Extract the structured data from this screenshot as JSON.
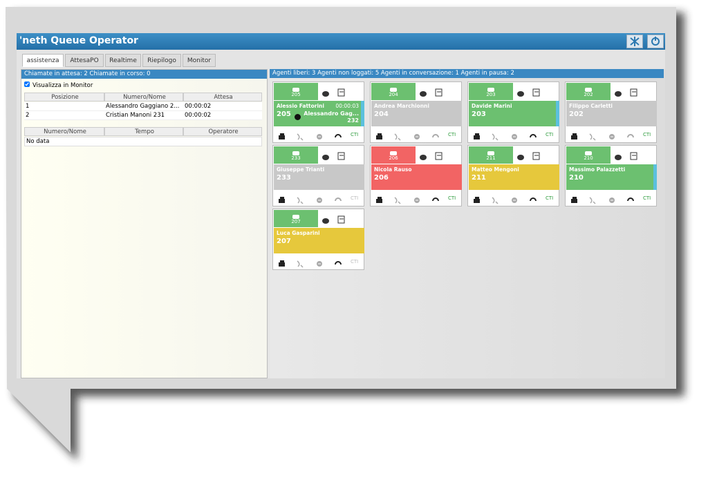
{
  "window": {
    "title": "'neth Queue Operator"
  },
  "tabs": [
    "assistenza",
    "AttesaPO",
    "Realtime",
    "Riepilogo",
    "Monitor"
  ],
  "queue_panel": {
    "status": "Chiamate in attesa: 2 Chiamate in corso: 0",
    "checkbox_label": "Visualizza in Monitor",
    "waiting_table": {
      "headers": [
        "Posizione",
        "Numero/Nome",
        "Attesa"
      ],
      "rows": [
        [
          "1",
          "Alessandro Gaggiano 2...",
          "00:00:02"
        ],
        [
          "2",
          "Cristian Manoni 231",
          "00:00:02"
        ]
      ]
    },
    "active_table": {
      "headers": [
        "Numero/Nome",
        "Tempo",
        "Operatore"
      ],
      "empty": "No data"
    }
  },
  "agents": {
    "status": "Agenti liberi: 3 Agenti non loggati: 5 Agenti in conversazione: 1 Agenti in pausa: 2",
    "cti_label": "CTI",
    "cards": [
      {
        "extension": "205",
        "name": "Alessio Fattorini",
        "color": "#6cc070",
        "stripe": "#5bc0de",
        "call": {
          "time": "00:00:03",
          "caller": "Alessandro Gag...",
          "caller_number": "232"
        }
      },
      {
        "extension": "204",
        "name": "Andrea Marchionni",
        "color": "#c8c8c8"
      },
      {
        "extension": "203",
        "name": "Davide Marini",
        "color": "#6cc070",
        "stripe": "#5bc0de"
      },
      {
        "extension": "202",
        "name": "Filippo Carletti",
        "color": "#c8c8c8"
      },
      {
        "extension": "233",
        "name": "Giuseppe Trianti",
        "color": "#c8c8c8"
      },
      {
        "extension": "206",
        "name": "Nicola Rauso",
        "color": "#f26464"
      },
      {
        "extension": "211",
        "name": "Matteo Mengoni",
        "color": "#e6c83c"
      },
      {
        "extension": "210",
        "name": "Massimo Palazzetti",
        "color": "#6cc070",
        "stripe": "#5bc0de"
      },
      {
        "extension": "207",
        "name": "Luca Gasparini",
        "color": "#e6c83c"
      }
    ]
  }
}
